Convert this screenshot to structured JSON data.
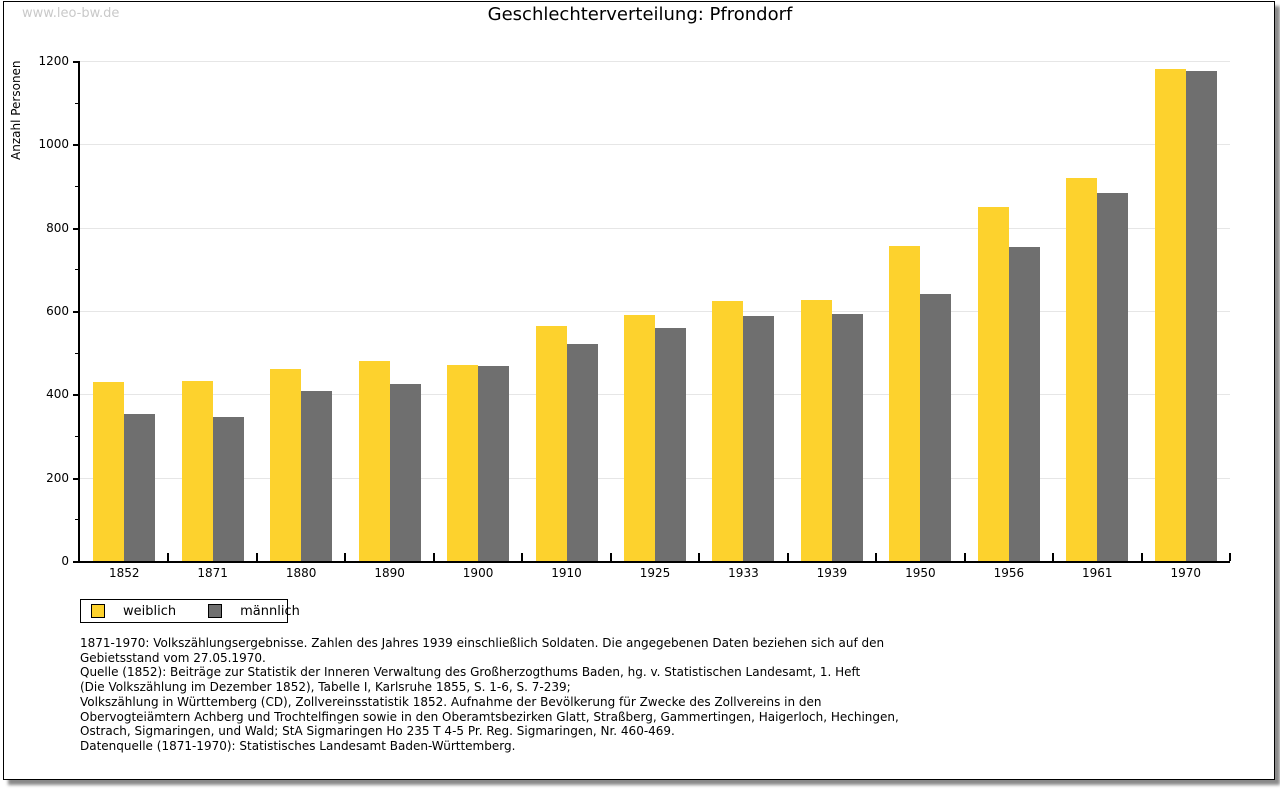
{
  "watermark": "www.leo-bw.de",
  "title": "Geschlechterverteilung: Pfrondorf",
  "chart_data": {
    "type": "bar",
    "title": "Geschlechterverteilung: Pfrondorf",
    "xlabel": "",
    "ylabel": "Anzahl Personen",
    "ylim": [
      0,
      1200
    ],
    "ytick_interval": 200,
    "yticks": [
      0,
      200,
      400,
      600,
      800,
      1000,
      1200
    ],
    "grid": "horizontal-major",
    "legend_position": "bottom-left",
    "categories": [
      "1852",
      "1871",
      "1880",
      "1890",
      "1900",
      "1910",
      "1925",
      "1933",
      "1939",
      "1950",
      "1956",
      "1961",
      "1970"
    ],
    "series": [
      {
        "name": "weiblich",
        "color": "#fdd22d",
        "values": [
          430,
          432,
          460,
          480,
          470,
          565,
          590,
          624,
          627,
          755,
          850,
          920,
          1180
        ]
      },
      {
        "name": "männlich",
        "color": "#6f6f6f",
        "values": [
          353,
          346,
          408,
          425,
          467,
          520,
          560,
          589,
          592,
          640,
          753,
          883,
          1175
        ]
      }
    ]
  },
  "legend": {
    "items": [
      {
        "label": "weiblich",
        "color": "#fdd22d"
      },
      {
        "label": "männlich",
        "color": "#6f6f6f"
      }
    ]
  },
  "footnotes": {
    "lines": [
      "1871-1970: Volkszählungsergebnisse. Zahlen des Jahres 1939 einschließlich Soldaten. Die angegebenen Daten beziehen sich auf den",
      "Gebietsstand vom 27.05.1970.",
      "Quelle (1852): Beiträge zur Statistik der Inneren Verwaltung des Großherzogthums Baden, hg. v. Statistischen Landesamt, 1. Heft",
      "(Die Volkszählung im Dezember 1852), Tabelle I, Karlsruhe 1855, S. 1-6, S. 7-239;",
      "Volkszählung in Württemberg (CD), Zollvereinsstatistik 1852. Aufnahme der Bevölkerung für Zwecke des Zollvereins in den",
      "Obervogteiämtern Achberg und Trochtelfingen sowie in den Oberamtsbezirken Glatt, Straßberg, Gammertingen, Haigerloch, Hechingen,",
      "Ostrach, Sigmaringen, und Wald; StA Sigmaringen Ho 235 T 4-5 Pr. Reg. Sigmaringen, Nr. 460-469."
    ],
    "datasource": "Datenquelle (1871-1970): Statistisches Landesamt Baden-Württemberg."
  },
  "colors": {
    "weiblich": "#fdd22d",
    "männlich": "#6f6f6f",
    "gridline": "#e6e6e6",
    "axis": "#000000",
    "watermark": "#c9c9c9",
    "frame_shadow": "#8a8a8a",
    "background": "#ffffff"
  }
}
